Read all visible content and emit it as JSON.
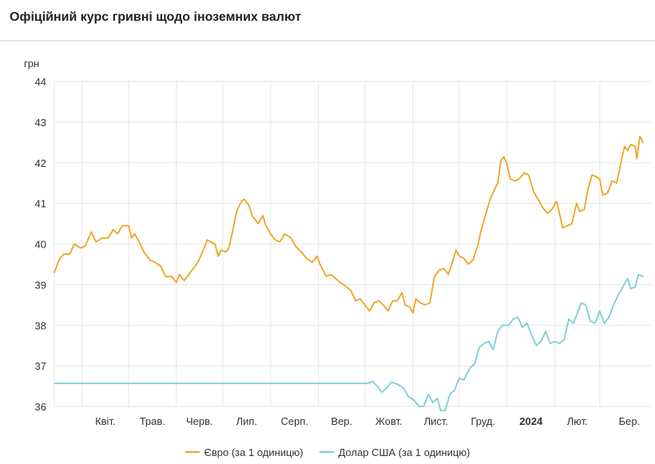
{
  "header": {
    "title": "Офіційний курс гривні щодо іноземних валют"
  },
  "chart_data": {
    "type": "line",
    "title": "Офіційний курс гривні щодо іноземних валют",
    "ylabel": "грн",
    "xlabel": "",
    "ylim": [
      36,
      44
    ],
    "yticks": [
      36,
      37,
      38,
      39,
      40,
      41,
      42,
      43,
      44
    ],
    "x_range": [
      "2023-03-14",
      "2024-03-29"
    ],
    "xticks": [
      {
        "date": "2023-04-01",
        "label": "Квіт.",
        "bold": false
      },
      {
        "date": "2023-05-01",
        "label": "Трав.",
        "bold": false
      },
      {
        "date": "2023-06-01",
        "label": "Черв.",
        "bold": false
      },
      {
        "date": "2023-07-01",
        "label": "Лип.",
        "bold": false
      },
      {
        "date": "2023-08-01",
        "label": "Серп.",
        "bold": false
      },
      {
        "date": "2023-09-01",
        "label": "Вер.",
        "bold": false
      },
      {
        "date": "2023-10-01",
        "label": "Жовт.",
        "bold": false
      },
      {
        "date": "2023-11-01",
        "label": "Лист.",
        "bold": false
      },
      {
        "date": "2023-12-01",
        "label": "Груд.",
        "bold": false
      },
      {
        "date": "2024-01-01",
        "label": "2024",
        "bold": true
      },
      {
        "date": "2024-02-01",
        "label": "Лют.",
        "bold": false
      },
      {
        "date": "2024-03-01",
        "label": "Бер.",
        "bold": false
      }
    ],
    "grid": true,
    "legend_position": "bottom",
    "series": [
      {
        "name": "Євро (за 1 одиницю)",
        "color": "#f0a324",
        "points": [
          [
            "2023-03-14",
            39.3
          ],
          [
            "2023-03-17",
            39.6
          ],
          [
            "2023-03-20",
            39.75
          ],
          [
            "2023-03-24",
            39.75
          ],
          [
            "2023-03-27",
            40.0
          ],
          [
            "2023-03-31",
            39.9
          ],
          [
            "2023-04-03",
            39.95
          ],
          [
            "2023-04-07",
            40.3
          ],
          [
            "2023-04-10",
            40.05
          ],
          [
            "2023-04-14",
            40.15
          ],
          [
            "2023-04-18",
            40.15
          ],
          [
            "2023-04-21",
            40.35
          ],
          [
            "2023-04-24",
            40.25
          ],
          [
            "2023-04-27",
            40.45
          ],
          [
            "2023-05-01",
            40.45
          ],
          [
            "2023-05-03",
            40.15
          ],
          [
            "2023-05-05",
            40.25
          ],
          [
            "2023-05-08",
            40.05
          ],
          [
            "2023-05-11",
            39.8
          ],
          [
            "2023-05-15",
            39.6
          ],
          [
            "2023-05-18",
            39.55
          ],
          [
            "2023-05-22",
            39.45
          ],
          [
            "2023-05-25",
            39.2
          ],
          [
            "2023-05-29",
            39.2
          ],
          [
            "2023-06-01",
            39.05
          ],
          [
            "2023-06-03",
            39.25
          ],
          [
            "2023-06-06",
            39.1
          ],
          [
            "2023-06-09",
            39.25
          ],
          [
            "2023-06-12",
            39.4
          ],
          [
            "2023-06-15",
            39.55
          ],
          [
            "2023-06-19",
            39.9
          ],
          [
            "2023-06-21",
            40.1
          ],
          [
            "2023-06-23",
            40.05
          ],
          [
            "2023-06-26",
            40.0
          ],
          [
            "2023-06-28",
            39.7
          ],
          [
            "2023-06-30",
            39.85
          ],
          [
            "2023-07-03",
            39.8
          ],
          [
            "2023-07-05",
            39.9
          ],
          [
            "2023-07-07",
            40.25
          ],
          [
            "2023-07-10",
            40.8
          ],
          [
            "2023-07-13",
            41.05
          ],
          [
            "2023-07-15",
            41.1
          ],
          [
            "2023-07-18",
            40.95
          ],
          [
            "2023-07-20",
            40.7
          ],
          [
            "2023-07-24",
            40.5
          ],
          [
            "2023-07-27",
            40.7
          ],
          [
            "2023-07-29",
            40.45
          ],
          [
            "2023-08-01",
            40.25
          ],
          [
            "2023-08-04",
            40.1
          ],
          [
            "2023-08-07",
            40.05
          ],
          [
            "2023-08-10",
            40.25
          ],
          [
            "2023-08-14",
            40.15
          ],
          [
            "2023-08-17",
            39.95
          ],
          [
            "2023-08-21",
            39.8
          ],
          [
            "2023-08-24",
            39.65
          ],
          [
            "2023-08-28",
            39.55
          ],
          [
            "2023-08-31",
            39.7
          ],
          [
            "2023-09-02",
            39.5
          ],
          [
            "2023-09-06",
            39.2
          ],
          [
            "2023-09-09",
            39.25
          ],
          [
            "2023-09-12",
            39.15
          ],
          [
            "2023-09-15",
            39.05
          ],
          [
            "2023-09-19",
            38.95
          ],
          [
            "2023-09-22",
            38.85
          ],
          [
            "2023-09-25",
            38.6
          ],
          [
            "2023-09-28",
            38.65
          ],
          [
            "2023-10-01",
            38.5
          ],
          [
            "2023-10-04",
            38.35
          ],
          [
            "2023-10-07",
            38.55
          ],
          [
            "2023-10-10",
            38.6
          ],
          [
            "2023-10-13",
            38.5
          ],
          [
            "2023-10-16",
            38.35
          ],
          [
            "2023-10-19",
            38.6
          ],
          [
            "2023-10-22",
            38.6
          ],
          [
            "2023-10-25",
            38.8
          ],
          [
            "2023-10-27",
            38.5
          ],
          [
            "2023-10-30",
            38.45
          ],
          [
            "2023-11-01",
            38.3
          ],
          [
            "2023-11-03",
            38.65
          ],
          [
            "2023-11-06",
            38.55
          ],
          [
            "2023-11-09",
            38.5
          ],
          [
            "2023-11-12",
            38.55
          ],
          [
            "2023-11-15",
            39.2
          ],
          [
            "2023-11-18",
            39.35
          ],
          [
            "2023-11-21",
            39.4
          ],
          [
            "2023-11-24",
            39.25
          ],
          [
            "2023-11-27",
            39.6
          ],
          [
            "2023-11-29",
            39.85
          ],
          [
            "2023-12-01",
            39.7
          ],
          [
            "2023-12-04",
            39.65
          ],
          [
            "2023-12-07",
            39.5
          ],
          [
            "2023-12-10",
            39.6
          ],
          [
            "2023-12-13",
            39.95
          ],
          [
            "2023-12-15",
            40.3
          ],
          [
            "2023-12-18",
            40.7
          ],
          [
            "2023-12-21",
            41.1
          ],
          [
            "2023-12-24",
            41.35
          ],
          [
            "2023-12-26",
            41.5
          ],
          [
            "2023-12-28",
            42.05
          ],
          [
            "2023-12-30",
            42.15
          ],
          [
            "2024-01-01",
            41.95
          ],
          [
            "2024-01-03",
            41.6
          ],
          [
            "2024-01-06",
            41.55
          ],
          [
            "2024-01-09",
            41.6
          ],
          [
            "2024-01-12",
            41.75
          ],
          [
            "2024-01-15",
            41.7
          ],
          [
            "2024-01-18",
            41.3
          ],
          [
            "2024-01-21",
            41.1
          ],
          [
            "2024-01-24",
            40.9
          ],
          [
            "2024-01-27",
            40.75
          ],
          [
            "2024-01-30",
            40.85
          ],
          [
            "2024-02-02",
            41.05
          ],
          [
            "2024-02-04",
            40.75
          ],
          [
            "2024-02-06",
            40.4
          ],
          [
            "2024-02-09",
            40.45
          ],
          [
            "2024-02-12",
            40.5
          ],
          [
            "2024-02-15",
            41.0
          ],
          [
            "2024-02-17",
            40.8
          ],
          [
            "2024-02-20",
            40.85
          ],
          [
            "2024-02-22",
            41.3
          ],
          [
            "2024-02-25",
            41.7
          ],
          [
            "2024-02-28",
            41.65
          ],
          [
            "2024-03-01",
            41.6
          ],
          [
            "2024-03-03",
            41.2
          ],
          [
            "2024-03-06",
            41.25
          ],
          [
            "2024-03-09",
            41.55
          ],
          [
            "2024-03-12",
            41.5
          ],
          [
            "2024-03-15",
            42.05
          ],
          [
            "2024-03-17",
            42.4
          ],
          [
            "2024-03-19",
            42.3
          ],
          [
            "2024-03-21",
            42.45
          ],
          [
            "2024-03-24",
            42.4
          ],
          [
            "2024-03-25",
            42.1
          ],
          [
            "2024-03-27",
            42.65
          ],
          [
            "2024-03-29",
            42.5
          ]
        ]
      },
      {
        "name": "Долар США (за 1 одиницю)",
        "color": "#7ccfd3",
        "points": [
          [
            "2023-03-14",
            36.57
          ],
          [
            "2023-10-03",
            36.57
          ],
          [
            "2023-10-06",
            36.62
          ],
          [
            "2023-10-09",
            36.5
          ],
          [
            "2023-10-12",
            36.35
          ],
          [
            "2023-10-15",
            36.45
          ],
          [
            "2023-10-18",
            36.6
          ],
          [
            "2023-10-22",
            36.55
          ],
          [
            "2023-10-26",
            36.45
          ],
          [
            "2023-10-29",
            36.25
          ],
          [
            "2023-11-02",
            36.15
          ],
          [
            "2023-11-05",
            36.0
          ],
          [
            "2023-11-08",
            36.0
          ],
          [
            "2023-11-11",
            36.3
          ],
          [
            "2023-11-14",
            36.1
          ],
          [
            "2023-11-17",
            36.2
          ],
          [
            "2023-11-19",
            35.9
          ],
          [
            "2023-11-22",
            35.9
          ],
          [
            "2023-11-25",
            36.3
          ],
          [
            "2023-11-28",
            36.4
          ],
          [
            "2023-12-01",
            36.7
          ],
          [
            "2023-12-04",
            36.65
          ],
          [
            "2023-12-08",
            36.95
          ],
          [
            "2023-12-11",
            37.05
          ],
          [
            "2023-12-14",
            37.45
          ],
          [
            "2023-12-17",
            37.55
          ],
          [
            "2023-12-20",
            37.6
          ],
          [
            "2023-12-23",
            37.4
          ],
          [
            "2023-12-26",
            37.85
          ],
          [
            "2023-12-29",
            38.0
          ],
          [
            "2024-01-02",
            38.0
          ],
          [
            "2024-01-05",
            38.15
          ],
          [
            "2024-01-08",
            38.2
          ],
          [
            "2024-01-11",
            37.95
          ],
          [
            "2024-01-14",
            38.05
          ],
          [
            "2024-01-17",
            37.75
          ],
          [
            "2024-01-20",
            37.5
          ],
          [
            "2024-01-23",
            37.6
          ],
          [
            "2024-01-26",
            37.85
          ],
          [
            "2024-01-29",
            37.55
          ],
          [
            "2024-02-01",
            37.6
          ],
          [
            "2024-02-04",
            37.55
          ],
          [
            "2024-02-07",
            37.65
          ],
          [
            "2024-02-10",
            38.15
          ],
          [
            "2024-02-13",
            38.05
          ],
          [
            "2024-02-16",
            38.35
          ],
          [
            "2024-02-18",
            38.55
          ],
          [
            "2024-02-21",
            38.5
          ],
          [
            "2024-02-24",
            38.1
          ],
          [
            "2024-02-27",
            38.05
          ],
          [
            "2024-03-01",
            38.35
          ],
          [
            "2024-03-04",
            38.05
          ],
          [
            "2024-03-07",
            38.2
          ],
          [
            "2024-03-10",
            38.5
          ],
          [
            "2024-03-13",
            38.75
          ],
          [
            "2024-03-16",
            38.95
          ],
          [
            "2024-03-19",
            39.15
          ],
          [
            "2024-03-21",
            38.9
          ],
          [
            "2024-03-24",
            38.95
          ],
          [
            "2024-03-26",
            39.25
          ],
          [
            "2024-03-29",
            39.2
          ]
        ]
      }
    ]
  }
}
